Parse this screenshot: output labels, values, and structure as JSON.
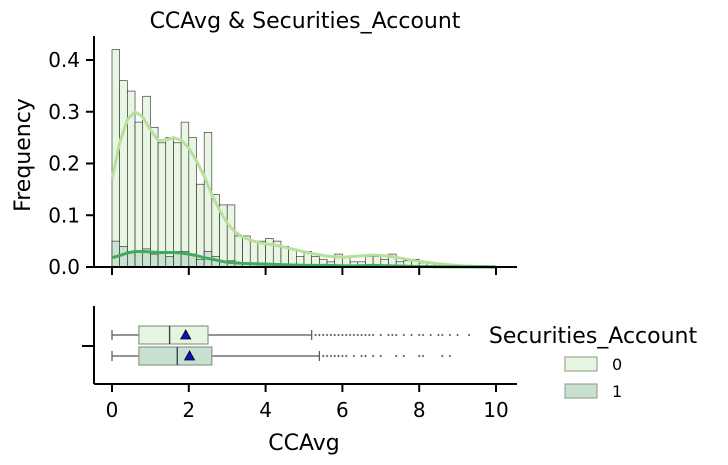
{
  "chart_data": {
    "type": "histogram+boxplot",
    "title": "CCAvg & Securities_Account",
    "xlabel": "CCAvg",
    "ylabel": "Frequency",
    "xlim": [
      -0.5,
      10.5
    ],
    "ylim": [
      0,
      0.44
    ],
    "x_ticks": [
      "0",
      "2",
      "4",
      "6",
      "8",
      "10"
    ],
    "y_ticks": [
      "0.0",
      "0.1",
      "0.2",
      "0.3",
      "0.4"
    ],
    "bin_width": 0.2,
    "bin_starts": [
      0.0,
      0.2,
      0.4,
      0.6,
      0.8,
      1.0,
      1.2,
      1.4,
      1.6,
      1.8,
      2.0,
      2.2,
      2.4,
      2.6,
      2.8,
      3.0,
      3.2,
      3.4,
      3.6,
      3.8,
      4.0,
      4.2,
      4.4,
      4.6,
      4.8,
      5.0,
      5.2,
      5.4,
      5.6,
      5.8,
      6.0,
      6.2,
      6.4,
      6.6,
      6.8,
      7.0,
      7.2,
      7.4,
      7.6,
      7.8,
      8.0,
      8.2,
      8.4,
      8.6,
      8.8,
      9.0,
      9.2,
      9.4,
      9.6,
      9.8
    ],
    "series": [
      {
        "name": "0",
        "color": "#e5f5e0",
        "kde_color": "#b8e09c",
        "values": [
          0.42,
          0.36,
          0.34,
          0.28,
          0.33,
          0.27,
          0.24,
          0.25,
          0.24,
          0.28,
          0.25,
          0.16,
          0.26,
          0.14,
          0.12,
          0.12,
          0.06,
          0.06,
          0.05,
          0.05,
          0.055,
          0.05,
          0.04,
          0.035,
          0.02,
          0.03,
          0.02,
          0.015,
          0.01,
          0.025,
          0.02,
          0.01,
          0.01,
          0.02,
          0.02,
          0.015,
          0.025,
          0.01,
          0.012,
          0.015,
          0.008,
          0.007,
          0.005,
          0.003,
          0.002,
          0.002,
          0.0,
          0.0,
          0.0,
          0.002
        ],
        "kde": [
          [
            0,
            0.17
          ],
          [
            0.2,
            0.24
          ],
          [
            0.4,
            0.285
          ],
          [
            0.6,
            0.3
          ],
          [
            0.8,
            0.29
          ],
          [
            1.0,
            0.265
          ],
          [
            1.2,
            0.245
          ],
          [
            1.4,
            0.245
          ],
          [
            1.6,
            0.25
          ],
          [
            1.8,
            0.245
          ],
          [
            2.0,
            0.23
          ],
          [
            2.2,
            0.205
          ],
          [
            2.4,
            0.175
          ],
          [
            2.6,
            0.14
          ],
          [
            2.8,
            0.11
          ],
          [
            3.0,
            0.085
          ],
          [
            3.2,
            0.068
          ],
          [
            3.4,
            0.058
          ],
          [
            3.6,
            0.052
          ],
          [
            3.8,
            0.048
          ],
          [
            4.0,
            0.045
          ],
          [
            4.4,
            0.04
          ],
          [
            4.8,
            0.033
          ],
          [
            5.2,
            0.026
          ],
          [
            5.6,
            0.021
          ],
          [
            6.0,
            0.019
          ],
          [
            6.4,
            0.021
          ],
          [
            6.8,
            0.023
          ],
          [
            7.2,
            0.021
          ],
          [
            7.6,
            0.016
          ],
          [
            8.0,
            0.011
          ],
          [
            8.4,
            0.007
          ],
          [
            8.8,
            0.004
          ],
          [
            9.2,
            0.002
          ],
          [
            9.6,
            0.001
          ],
          [
            10.0,
            0.0
          ]
        ]
      },
      {
        "name": "1",
        "color": "#c7e0cf",
        "kde_color": "#41ab5d",
        "values": [
          0.05,
          0.04,
          0.03,
          0.03,
          0.035,
          0.025,
          0.03,
          0.02,
          0.03,
          0.03,
          0.025,
          0.015,
          0.03,
          0.02,
          0.01,
          0.012,
          0.008,
          0.006,
          0.005,
          0.005,
          0.006,
          0.005,
          0.005,
          0.004,
          0.003,
          0.004,
          0.003,
          0.002,
          0.002,
          0.003,
          0.002,
          0.001,
          0.001,
          0.002,
          0.002,
          0.002,
          0.003,
          0.001,
          0.001,
          0.001,
          0.001,
          0.0,
          0.0,
          0.0,
          0.0,
          0.0,
          0.0,
          0.0,
          0.0,
          0.0
        ],
        "kde": [
          [
            0,
            0.018
          ],
          [
            0.2,
            0.022
          ],
          [
            0.4,
            0.027
          ],
          [
            0.6,
            0.03
          ],
          [
            0.8,
            0.03
          ],
          [
            1.0,
            0.029
          ],
          [
            1.2,
            0.028
          ],
          [
            1.4,
            0.028
          ],
          [
            1.6,
            0.028
          ],
          [
            1.8,
            0.027
          ],
          [
            2.0,
            0.025
          ],
          [
            2.2,
            0.022
          ],
          [
            2.4,
            0.018
          ],
          [
            2.6,
            0.015
          ],
          [
            2.8,
            0.012
          ],
          [
            3.0,
            0.009
          ],
          [
            3.4,
            0.007
          ],
          [
            3.8,
            0.006
          ],
          [
            4.2,
            0.005
          ],
          [
            4.6,
            0.004
          ],
          [
            5.0,
            0.003
          ],
          [
            5.6,
            0.003
          ],
          [
            6.2,
            0.002
          ],
          [
            6.8,
            0.003
          ],
          [
            7.4,
            0.002
          ],
          [
            8.0,
            0.001
          ],
          [
            8.6,
            0.0005
          ],
          [
            9.2,
            0.0002
          ],
          [
            10.0,
            0.0
          ]
        ]
      }
    ],
    "boxplots": [
      {
        "name": "0",
        "color": "#e5f5e0",
        "whisker_low": 0.0,
        "q1": 0.7,
        "median": 1.5,
        "q3": 2.5,
        "whisker_high": 5.2,
        "mean": 1.92,
        "outliers": [
          5.3,
          5.4,
          5.5,
          5.6,
          5.7,
          5.8,
          5.9,
          6.0,
          6.1,
          6.2,
          6.3,
          6.4,
          6.5,
          6.6,
          6.7,
          6.8,
          7.0,
          7.2,
          7.3,
          7.4,
          7.6,
          7.8,
          8.0,
          8.1,
          8.3,
          8.5,
          8.6,
          8.8,
          9.0,
          9.3,
          10.0
        ]
      },
      {
        "name": "1",
        "color": "#c7e0cf",
        "whisker_low": 0.0,
        "q1": 0.7,
        "median": 1.7,
        "q3": 2.6,
        "whisker_high": 5.4,
        "mean": 2.02,
        "outliers": [
          5.5,
          5.6,
          5.7,
          5.8,
          5.9,
          6.0,
          6.1,
          6.3,
          6.5,
          6.6,
          6.8,
          7.0,
          7.4,
          7.6,
          8.0,
          8.1,
          8.6,
          8.8
        ]
      }
    ],
    "legend": {
      "title": "Securities_Account",
      "position": "right",
      "entries": [
        {
          "label": "0",
          "color": "#e5f5e0"
        },
        {
          "label": "1",
          "color": "#c7e0cf"
        }
      ]
    },
    "mean_marker_color": "#1010c8",
    "grid": false
  }
}
